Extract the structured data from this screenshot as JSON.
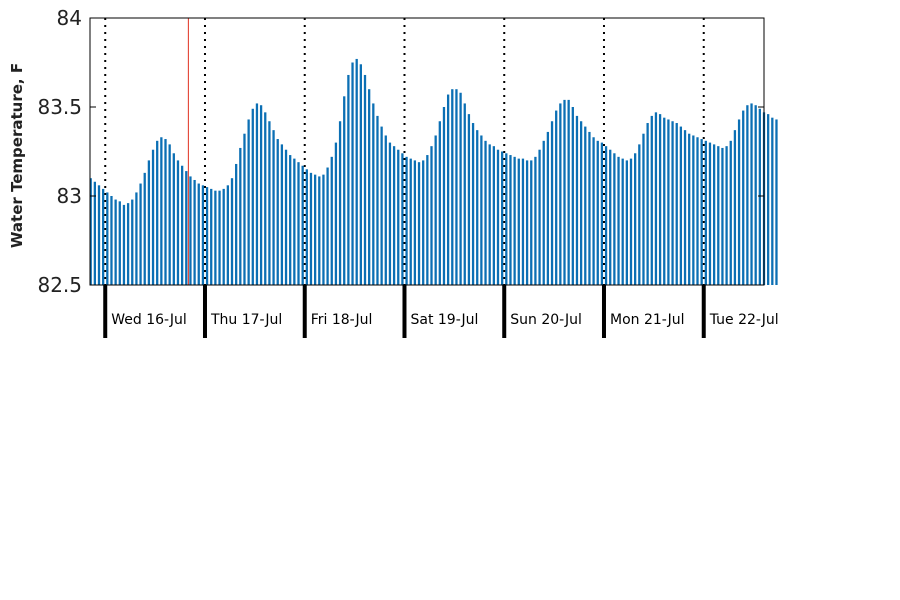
{
  "chart_data": {
    "type": "bar",
    "title": "",
    "xlabel": "",
    "ylabel": "Water Temperature, F",
    "ylim": [
      82.5,
      84
    ],
    "yticks": [
      "82.5",
      "83",
      "83.5",
      "84"
    ],
    "ytick_values": [
      82.5,
      83,
      83.5,
      84
    ],
    "grid": false,
    "legend": "none",
    "x_start": "2025-07-15 20:20",
    "x_end": "2025-07-22 14:30",
    "sample_interval_hours": 1,
    "day_markers": [
      "2025-07-16 00:00",
      "2025-07-17 00:00",
      "2025-07-18 00:00",
      "2025-07-19 00:00",
      "2025-07-20 00:00",
      "2025-07-21 00:00",
      "2025-07-22 00:00"
    ],
    "day_labels": [
      "Wed 16-Jul",
      "Thu 17-Jul",
      "Fri 18-Jul",
      "Sat 19-Jul",
      "Sun 20-Jul",
      "Mon 21-Jul",
      "Tue 22-Jul"
    ],
    "current_time_marker": "2025-07-16 20:00",
    "series": [
      {
        "start": "2025-07-15 20:30",
        "values": [
          83.1,
          83.08,
          83.06,
          83.04,
          83.02,
          83.0,
          82.98,
          82.97,
          82.95,
          82.96,
          82.98,
          83.02,
          83.07,
          83.13,
          83.2,
          83.26,
          83.31,
          83.33,
          83.32,
          83.29,
          83.24,
          83.2,
          83.17,
          83.14,
          83.11,
          83.09,
          83.07,
          83.06,
          83.05,
          83.04,
          83.03,
          83.03,
          83.04,
          83.06,
          83.1,
          83.18,
          83.27,
          83.35,
          83.43,
          83.49,
          83.52,
          83.51,
          83.47,
          83.42,
          83.37,
          83.32,
          83.29,
          83.26,
          83.23,
          83.21,
          83.19,
          83.17,
          83.15,
          83.13,
          83.12,
          83.11,
          83.12,
          83.16,
          83.22,
          83.3,
          83.42,
          83.56,
          83.68,
          83.75,
          83.77,
          83.74,
          83.68,
          83.6,
          83.52,
          83.45,
          83.39,
          83.34,
          83.3,
          83.28,
          83.26,
          83.24,
          83.22,
          83.21,
          83.2,
          83.19,
          83.2,
          83.23,
          83.28,
          83.34,
          83.42,
          83.5,
          83.57,
          83.6,
          83.6,
          83.58,
          83.52,
          83.46,
          83.41,
          83.37,
          83.34,
          83.31,
          83.29,
          83.28,
          83.26,
          83.25,
          83.24,
          83.23,
          83.22,
          83.21,
          83.21,
          83.2,
          83.2,
          83.22,
          83.26,
          83.31,
          83.36,
          83.42,
          83.48,
          83.52,
          83.54,
          83.54,
          83.5,
          83.45,
          83.42,
          83.39,
          83.36,
          83.33,
          83.31,
          83.3,
          83.28,
          83.26,
          83.24,
          83.22,
          83.21,
          83.2,
          83.21,
          83.24,
          83.29,
          83.35,
          83.41,
          83.45,
          83.47,
          83.46,
          83.44,
          83.43,
          83.42,
          83.41,
          83.39,
          83.37,
          83.35,
          83.34,
          83.33,
          83.32,
          83.31,
          83.3,
          83.29,
          83.28,
          83.27,
          83.28,
          83.31,
          83.37,
          83.43,
          83.48,
          83.51,
          83.52,
          83.51,
          83.49,
          83.47,
          83.46,
          83.44,
          83.43
        ],
        "color": "#0b6fb4"
      }
    ],
    "colors": {
      "bars": "#0b6fb4",
      "day_separators": "#000000",
      "current_time_marker": "#e03020",
      "axes": "#000000"
    }
  }
}
